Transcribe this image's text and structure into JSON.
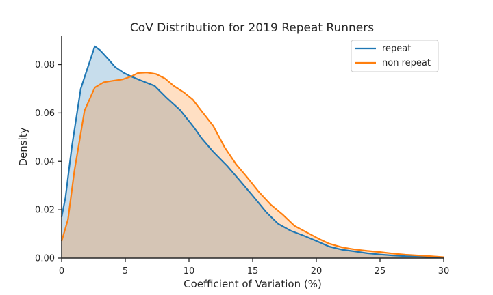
{
  "chart_data": {
    "type": "area",
    "title": "CoV Distribution for 2019 Repeat Runners",
    "xlabel": "Coefficient of Variation (%)",
    "ylabel": "Density",
    "xlim": [
      0,
      30
    ],
    "ylim": [
      0,
      0.092
    ],
    "xticks": [
      0,
      5,
      10,
      15,
      20,
      25,
      30
    ],
    "yticks": [
      0.0,
      0.02,
      0.04,
      0.06,
      0.08
    ],
    "ytick_labels": [
      "0.00",
      "0.02",
      "0.04",
      "0.06",
      "0.08"
    ],
    "grid": false,
    "legend_position": "top-right",
    "series": [
      {
        "name": "repeat",
        "color": "#1f77b4",
        "fill": "#1f77b4",
        "x": [
          0,
          0.3,
          0.8,
          1.5,
          2.0,
          2.6,
          3.0,
          3.7,
          4.2,
          4.9,
          5.5,
          6.2,
          7.3,
          8.2,
          9.3,
          10.4,
          11.0,
          11.9,
          13.0,
          14.0,
          15.0,
          16.1,
          17.0,
          18.0,
          19.0,
          20.0,
          21.0,
          22.0,
          23.0,
          24.0,
          25.0,
          26.0,
          27.0,
          28.0,
          29.0,
          30.0
        ],
        "values": [
          0.017,
          0.025,
          0.046,
          0.07,
          0.078,
          0.0875,
          0.086,
          0.082,
          0.079,
          0.0765,
          0.075,
          0.0735,
          0.0712,
          0.0665,
          0.0612,
          0.054,
          0.0495,
          0.044,
          0.0381,
          0.032,
          0.0258,
          0.0188,
          0.0142,
          0.0113,
          0.0093,
          0.0071,
          0.0048,
          0.0035,
          0.0028,
          0.002,
          0.0015,
          0.0011,
          0.0008,
          0.0006,
          0.0004,
          0.0003
        ]
      },
      {
        "name": "non repeat",
        "color": "#ff7f0e",
        "fill": "#ff7f0e",
        "x": [
          0,
          0.5,
          1.0,
          1.8,
          2.6,
          3.3,
          4.0,
          4.8,
          5.5,
          6.0,
          6.7,
          7.4,
          8.1,
          8.8,
          9.6,
          10.3,
          11.0,
          11.9,
          12.8,
          13.7,
          14.6,
          15.5,
          16.4,
          17.4,
          18.3,
          19.3,
          20.2,
          21.0,
          22.0,
          23.0,
          24.0,
          25.0,
          26.0,
          27.0,
          28.0,
          29.0,
          30.0
        ],
        "values": [
          0.007,
          0.016,
          0.036,
          0.061,
          0.0705,
          0.0727,
          0.0733,
          0.0739,
          0.0752,
          0.0765,
          0.0767,
          0.0761,
          0.0743,
          0.0712,
          0.0685,
          0.0655,
          0.0607,
          0.0547,
          0.0458,
          0.0388,
          0.0332,
          0.0273,
          0.0222,
          0.0178,
          0.0133,
          0.0105,
          0.008,
          0.006,
          0.0045,
          0.0036,
          0.003,
          0.0025,
          0.0019,
          0.0014,
          0.0011,
          0.0008,
          0.0004
        ]
      }
    ]
  }
}
